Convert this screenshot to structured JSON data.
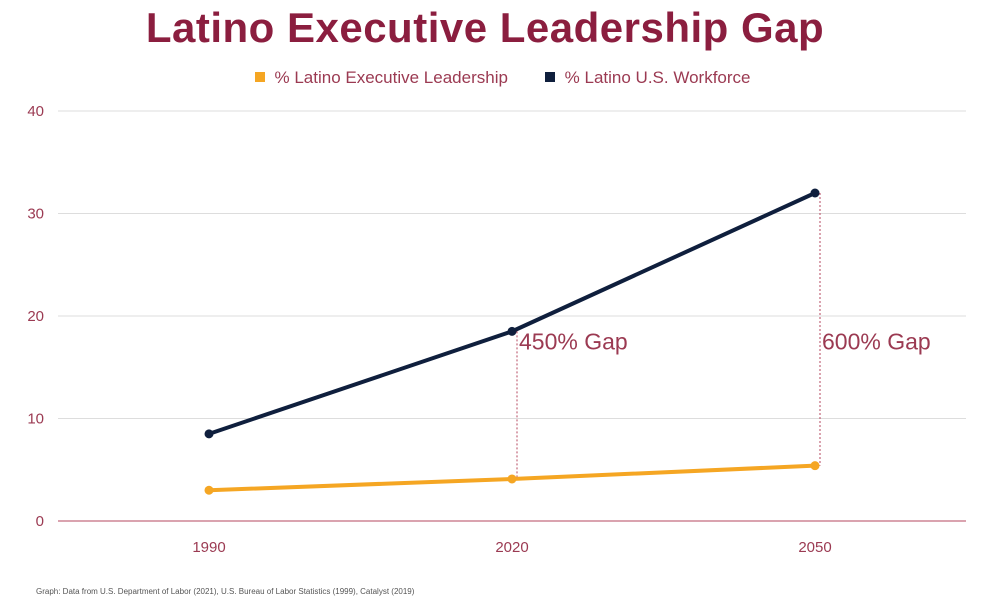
{
  "colors": {
    "title": "#8b1e3f",
    "text": "#9b3a52",
    "leadership": "#f5a623",
    "workforce": "#0f1f3d",
    "grid": "#dddddd",
    "axis": "#b5475f"
  },
  "source": "Graph: Data from U.S. Department of Labor (2021), U.S. Bureau of Labor Statistics (1999), Catalyst (2019)",
  "chart_data": {
    "type": "line",
    "title": "Latino Executive Leadership Gap",
    "xlabel": "",
    "ylabel": "",
    "categories": [
      "1990",
      "2020",
      "2050"
    ],
    "ylim": [
      0,
      40
    ],
    "yticks": [
      0,
      10,
      20,
      30,
      40
    ],
    "grid": true,
    "legend_position": "top-center",
    "series": [
      {
        "name": "% Latino Executive Leadership",
        "color": "#f5a623",
        "values": [
          3,
          4.1,
          5.4
        ]
      },
      {
        "name": "% Latino U.S. Workforce",
        "color": "#0f1f3d",
        "values": [
          8.5,
          18.5,
          32
        ]
      }
    ],
    "annotations": [
      {
        "category": "2020",
        "text": "450% Gap",
        "from_series": 0,
        "to_series": 1
      },
      {
        "category": "2050",
        "text": "600% Gap",
        "from_series": 0,
        "to_series": 1
      }
    ]
  }
}
